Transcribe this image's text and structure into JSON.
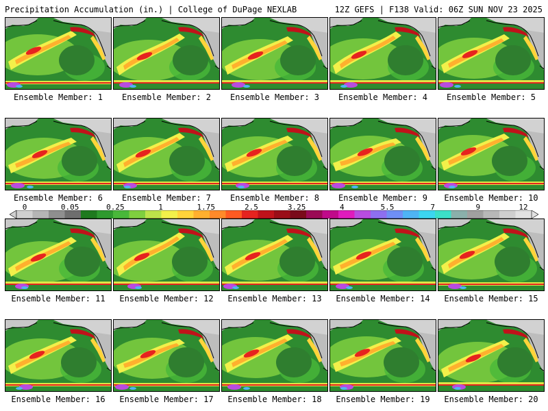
{
  "header": {
    "left": "Precipitation Accumulation (in.) | College of DuPage NEXLAB",
    "right": "12Z GEFS | F138 Valid: 06Z SUN NOV 23 2025"
  },
  "colorbar": {
    "tick_labels": [
      "0",
      "0.05",
      "0.25",
      "1",
      "1.75",
      "2.5",
      "3.25",
      "4",
      "5.5",
      "7",
      "9",
      "12"
    ],
    "colors": [
      "#d0d0d0",
      "#b5b5b5",
      "#8f8f8f",
      "#6e6e6e",
      "#1f7a1f",
      "#2f9a2f",
      "#49b83a",
      "#7fcf3f",
      "#bde34a",
      "#f2f04a",
      "#ffd43a",
      "#ffb02e",
      "#ff8a2a",
      "#ff5a22",
      "#e6231f",
      "#c0121a",
      "#9a0d18",
      "#7a0a1a",
      "#9a0a55",
      "#c00a8a",
      "#e01bbd",
      "#b84ce0",
      "#8e6ff0",
      "#6f8ff5",
      "#4fb4f5",
      "#3cd6f0",
      "#3ce0c8",
      "#8ab0ab",
      "#a0a0a0",
      "#b8b8b8",
      "#cfcfcf",
      "#e2e2e2"
    ]
  },
  "members": [
    {
      "label": "Ensemble Member: 1"
    },
    {
      "label": "Ensemble Member: 2"
    },
    {
      "label": "Ensemble Member: 3"
    },
    {
      "label": "Ensemble Member: 4"
    },
    {
      "label": "Ensemble Member: 5"
    },
    {
      "label": "Ensemble Member: 6"
    },
    {
      "label": "Ensemble Member: 7"
    },
    {
      "label": "Ensemble Member: 8"
    },
    {
      "label": "Ensemble Member: 9"
    },
    {
      "label": "Ensemble Member: 10"
    },
    {
      "label": "Ensemble Member: 11"
    },
    {
      "label": "Ensemble Member: 12"
    },
    {
      "label": "Ensemble Member: 13"
    },
    {
      "label": "Ensemble Member: 14"
    },
    {
      "label": "Ensemble Member: 15"
    },
    {
      "label": "Ensemble Member: 16"
    },
    {
      "label": "Ensemble Member: 17"
    },
    {
      "label": "Ensemble Member: 18"
    },
    {
      "label": "Ensemble Member: 19"
    },
    {
      "label": "Ensemble Member: 20"
    }
  ]
}
